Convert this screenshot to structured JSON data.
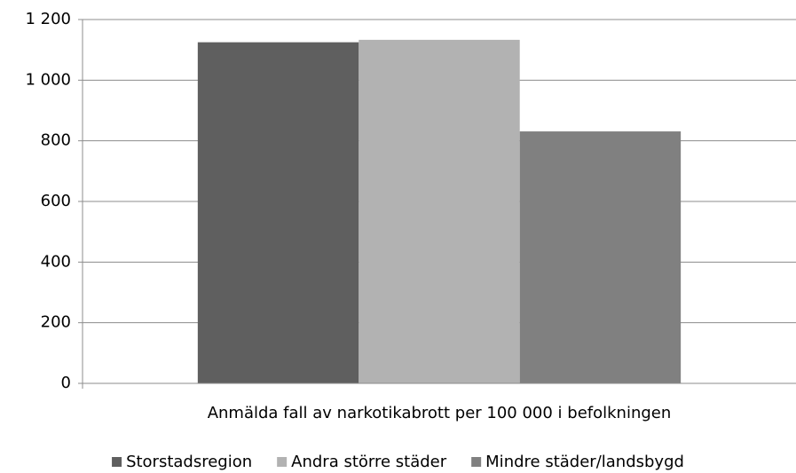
{
  "chart_data": {
    "type": "bar",
    "categories": [
      "Anmälda fall av narkotikabrott per 100 000 i befolkningen"
    ],
    "series": [
      {
        "name": "Storstadsregion",
        "color": "#5f5f5f",
        "values": [
          1125
        ]
      },
      {
        "name": "Andra större städer",
        "color": "#b2b2b2",
        "values": [
          1133
        ]
      },
      {
        "name": "Mindre städer/landsbygd",
        "color": "#808080",
        "values": [
          831
        ]
      }
    ],
    "ylim": [
      0,
      1200
    ],
    "yticks": [
      0,
      200,
      400,
      600,
      800,
      {
        "value": 1000,
        "label": "1 000"
      },
      {
        "value": 1200,
        "label": "1 200"
      }
    ],
    "grid": true,
    "legend": "bottom"
  }
}
